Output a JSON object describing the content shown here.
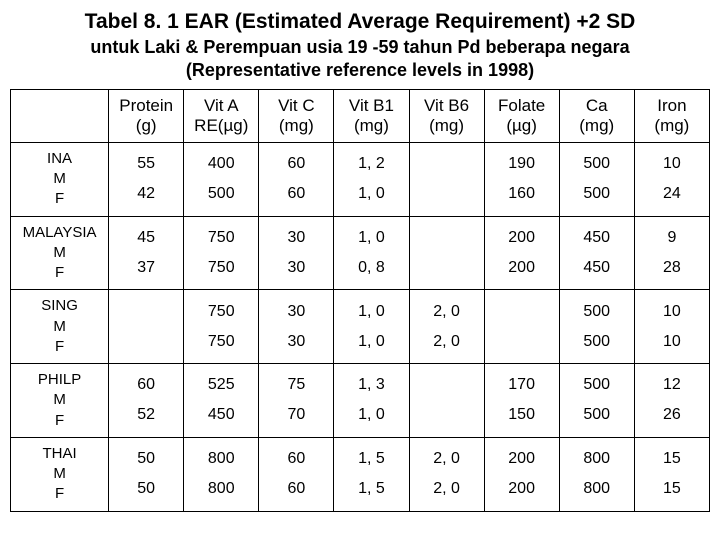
{
  "title": "Tabel  8. 1 EAR (Estimated Average Requirement) +2 SD",
  "subtitle_line1": "untuk Laki & Perempuan usia 19 -59 tahun",
  "subtitle_line2": "Pd beberapa negara (Representative reference levels in 1998)",
  "headers": [
    {
      "l1": "",
      "l2": ""
    },
    {
      "l1": "Protein",
      "l2": "(g)"
    },
    {
      "l1": "Vit A",
      "l2": "RE(µg)"
    },
    {
      "l1": "Vit C",
      "l2": "(mg)"
    },
    {
      "l1": "Vit B1",
      "l2": "(mg)"
    },
    {
      "l1": "Vit B6",
      "l2": "(mg)"
    },
    {
      "l1": "Folate",
      "l2": "(µg)"
    },
    {
      "l1": "Ca",
      "l2": "(mg)"
    },
    {
      "l1": "Iron",
      "l2": "(mg)"
    }
  ],
  "rows": [
    {
      "label": [
        "INA",
        "M",
        "F"
      ],
      "c": [
        [
          "55",
          "42"
        ],
        [
          "400",
          "500"
        ],
        [
          "60",
          "60"
        ],
        [
          "1, 2",
          "1, 0"
        ],
        [
          "",
          ""
        ],
        [
          "190",
          "160"
        ],
        [
          "500",
          "500"
        ],
        [
          "10",
          "24"
        ]
      ]
    },
    {
      "label": [
        "MALAYSIA",
        "M",
        "F"
      ],
      "c": [
        [
          "45",
          "37"
        ],
        [
          "750",
          "750"
        ],
        [
          "30",
          "30"
        ],
        [
          "1, 0",
          "0, 8"
        ],
        [
          "",
          ""
        ],
        [
          "200",
          "200"
        ],
        [
          "450",
          "450"
        ],
        [
          "9",
          "28"
        ]
      ]
    },
    {
      "label": [
        "SING",
        "M",
        "F"
      ],
      "c": [
        [
          "",
          ""
        ],
        [
          "750",
          "750"
        ],
        [
          "30",
          "30"
        ],
        [
          "1, 0",
          "1, 0"
        ],
        [
          "2, 0",
          "2, 0"
        ],
        [
          "",
          ""
        ],
        [
          "500",
          "500"
        ],
        [
          "10",
          "10"
        ]
      ]
    },
    {
      "label": [
        "PHILP",
        "M",
        "F"
      ],
      "c": [
        [
          "60",
          "52"
        ],
        [
          "525",
          "450"
        ],
        [
          "75",
          "70"
        ],
        [
          "1, 3",
          "1, 0"
        ],
        [
          "",
          ""
        ],
        [
          "170",
          "150"
        ],
        [
          "500",
          "500"
        ],
        [
          "12",
          "26"
        ]
      ]
    },
    {
      "label": [
        "THAI",
        "M",
        "F"
      ],
      "c": [
        [
          "50",
          "50"
        ],
        [
          "800",
          "800"
        ],
        [
          "60",
          "60"
        ],
        [
          "1, 5",
          "1, 5"
        ],
        [
          "2, 0",
          "2, 0"
        ],
        [
          "200",
          "200"
        ],
        [
          "800",
          "800"
        ],
        [
          "15",
          "15"
        ]
      ]
    }
  ]
}
